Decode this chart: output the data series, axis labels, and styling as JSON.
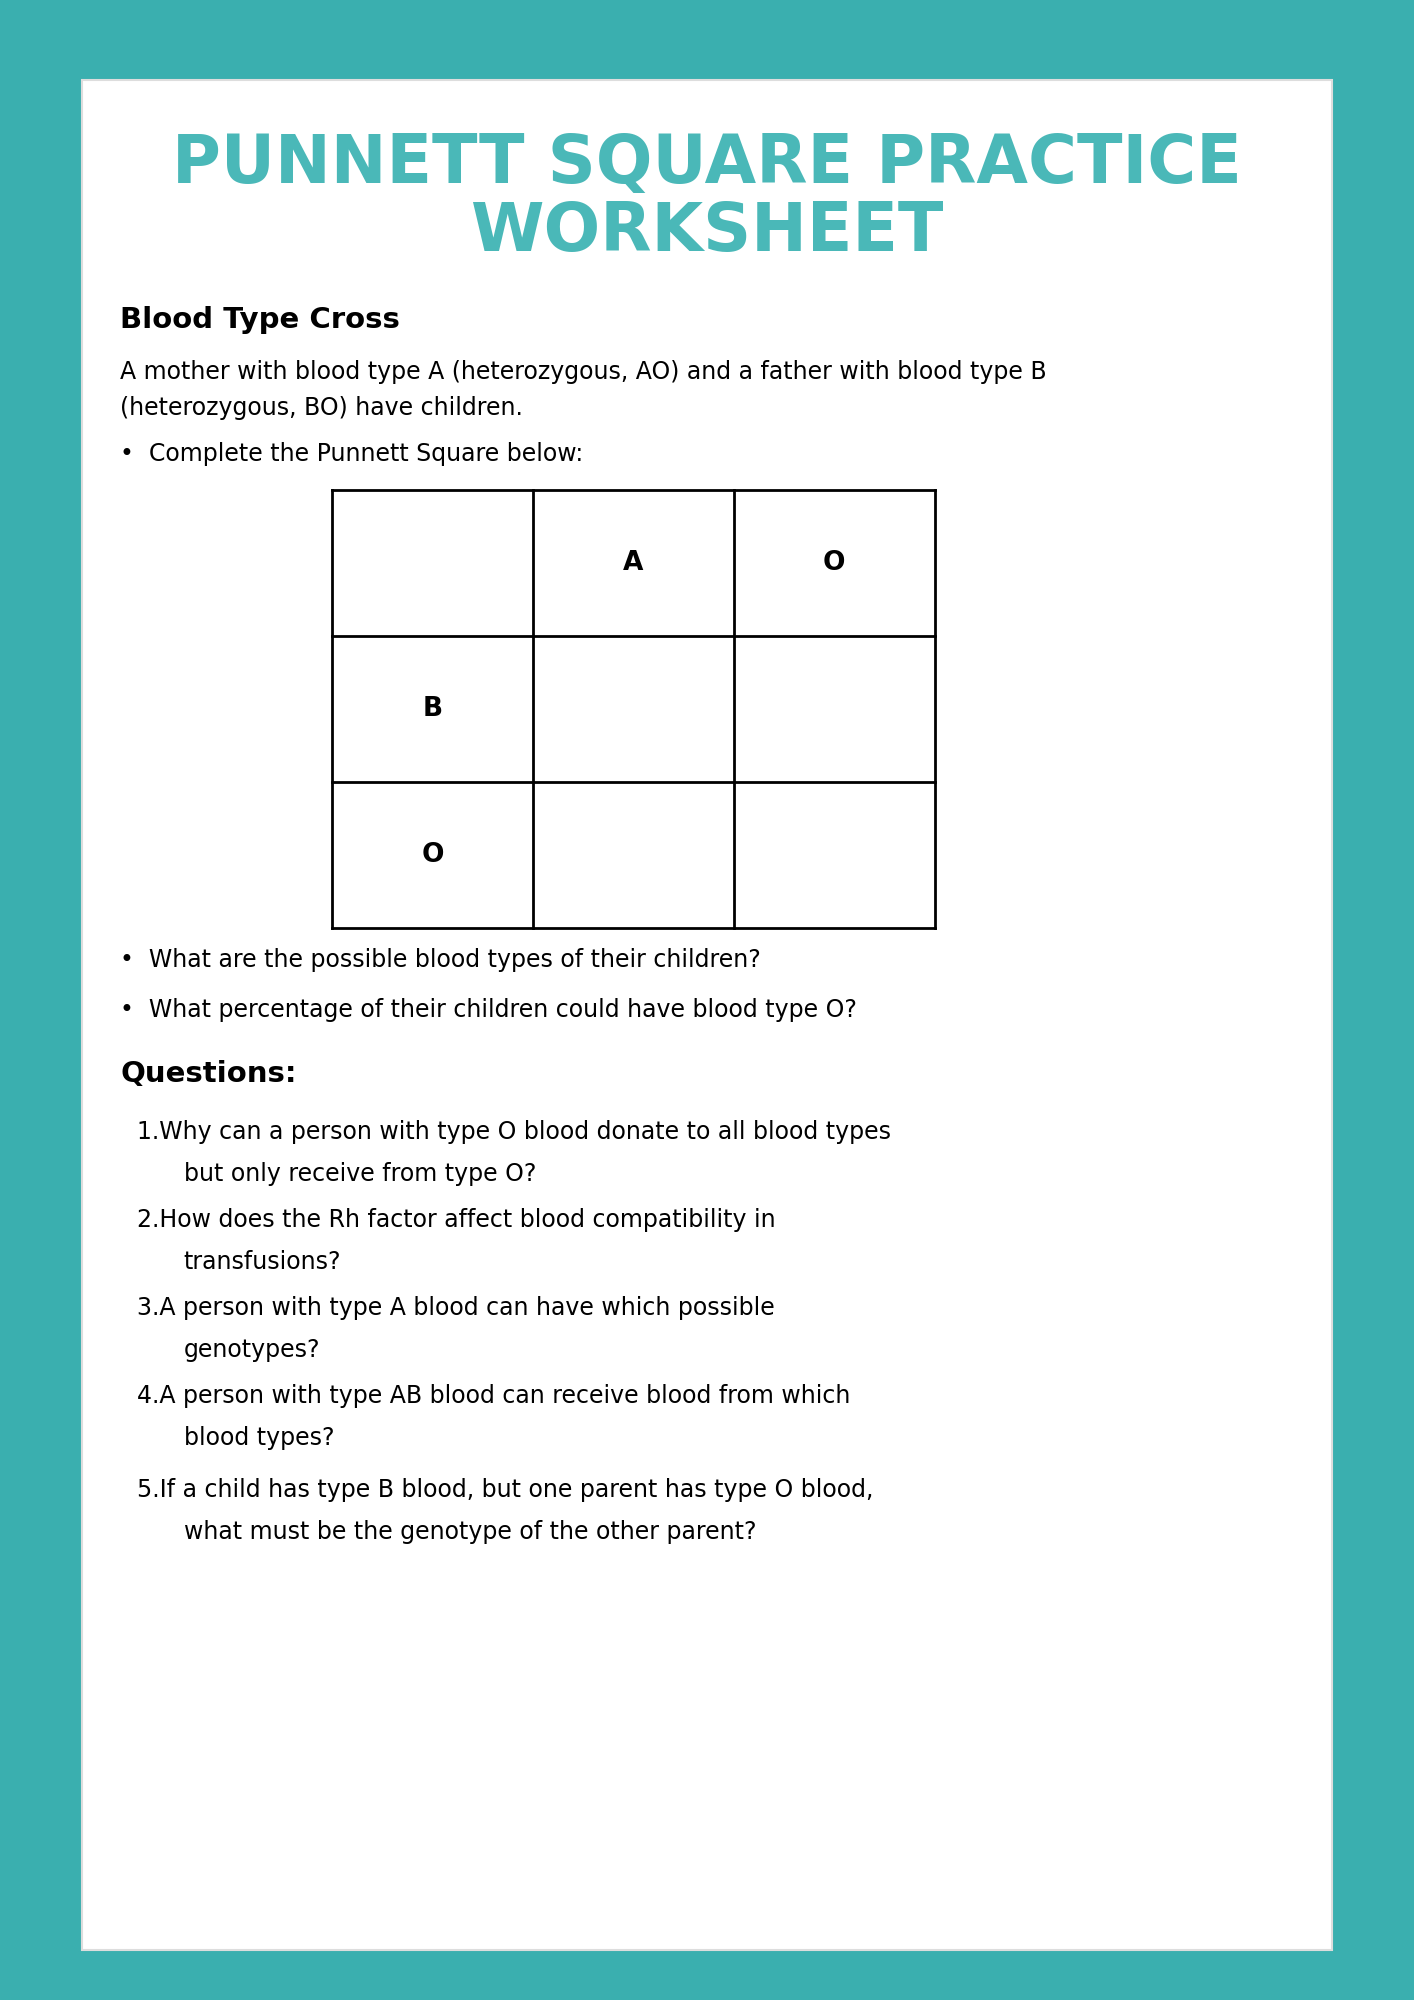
{
  "background_color": "#3aafaf",
  "paper_color": "#ffffff",
  "title_line1": "PUNNETT SQUARE PRACTICE",
  "title_line2": "WORKSHEET",
  "title_color": "#4ab8b8",
  "title_fontsize": 48,
  "section_heading": "Blood Type Cross",
  "intro_text1": "A mother with blood type A (heterozygous, AO) and a father with blood type B",
  "intro_text2": "(heterozygous, BO) have children.",
  "bullet1": "Complete the Punnett Square below:",
  "punnett_col_headers": [
    "A",
    "O"
  ],
  "punnett_row_headers": [
    "B",
    "O"
  ],
  "follow_bullets": [
    "What are the possible blood types of their children?",
    "What percentage of their children could have blood type O?"
  ],
  "questions_heading": "Questions:",
  "questions": [
    [
      "Why can a person with type O blood donate to all blood types",
      "but only receive from type O?"
    ],
    [
      "How does the Rh factor affect blood compatibility in",
      "transfusions?"
    ],
    [
      "A person with type A blood can have which possible",
      "genotypes?"
    ],
    [
      "A person with type AB blood can receive blood from which",
      "blood types?"
    ],
    [
      "If a child has type B blood, but one parent has type O blood,",
      "what must be the genotype of the other parent?"
    ]
  ],
  "text_color": "#000000",
  "body_fontsize": 17,
  "heading_fontsize": 21,
  "questions_fontsize": 17
}
